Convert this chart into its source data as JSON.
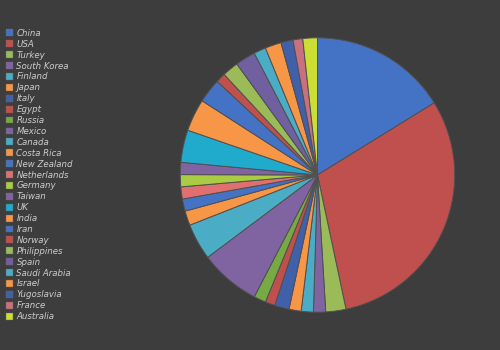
{
  "background_color": "#3d3d3d",
  "countries": [
    "China",
    "USA",
    "Turkey",
    "South Korea",
    "Finland",
    "Japan",
    "Italy",
    "Egypt",
    "Russia",
    "Mexico",
    "Canada",
    "Costa Rica",
    "New Zealand",
    "Netherlands",
    "Germany",
    "Taiwan",
    "UK",
    "India",
    "Iran",
    "Norway",
    "Philippines",
    "Spain",
    "Saudi Arabia",
    "Israel",
    "Yugoslavia",
    "France",
    "Australia"
  ],
  "values": [
    17,
    32,
    2.5,
    1.5,
    1.5,
    1.5,
    1.8,
    1.2,
    1.5,
    7.5,
    4.5,
    1.8,
    1.5,
    1.5,
    1.5,
    1.5,
    4.0,
    4.0,
    3.0,
    1.2,
    2.0,
    2.5,
    1.5,
    2.0,
    1.5,
    1.2,
    1.8
  ],
  "colors": [
    "#4472C4",
    "#C0504D",
    "#9BBB59",
    "#8064A2",
    "#4BACC6",
    "#F79646",
    "#4472C4",
    "#C0504D",
    "#9BBB59",
    "#8064A2",
    "#4BACC6",
    "#F79646",
    "#4472C4",
    "#E08080",
    "#AACC44",
    "#8064A2",
    "#20B8CC",
    "#F79646",
    "#4472C4",
    "#C0504D",
    "#9BBB59",
    "#8064A2",
    "#4BACC6",
    "#F79646",
    "#4472C4",
    "#E08080",
    "#CCDD44"
  ],
  "legend_text_color": "#cccccc",
  "legend_fontsize": 6.5
}
